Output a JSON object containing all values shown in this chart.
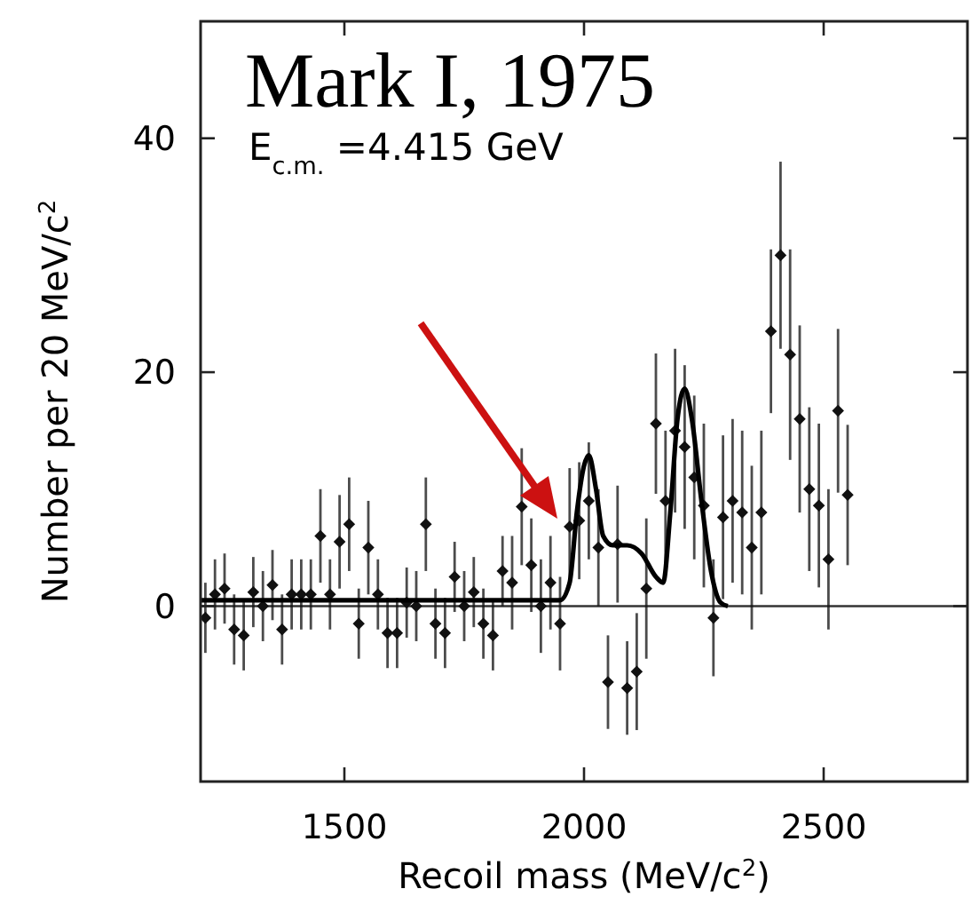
{
  "chart_data": {
    "type": "scatter",
    "title": "Mark I, 1975",
    "subtitle": "E$_{c.m.}$ =4.415 GeV",
    "xlabel": "Recoil mass (MeV/c$^{2}$)",
    "ylabel": "Number per 20 MeV/c$^{2}$",
    "xlim": [
      1200,
      2800
    ],
    "ylim": [
      -15,
      50
    ],
    "xticks": [
      1500,
      2000,
      2500
    ],
    "yticks": [
      0,
      20,
      40
    ],
    "grid": false,
    "ref_lines": [
      {
        "axis": "y",
        "value": 0
      }
    ],
    "series": [
      {
        "marker": "diamond",
        "color": "#111111",
        "x": [
          1210,
          1230,
          1250,
          1270,
          1290,
          1310,
          1330,
          1350,
          1370,
          1390,
          1410,
          1430,
          1450,
          1470,
          1490,
          1510,
          1530,
          1550,
          1570,
          1590,
          1610,
          1630,
          1650,
          1670,
          1690,
          1710,
          1730,
          1750,
          1770,
          1790,
          1810,
          1830,
          1850,
          1870,
          1890,
          1910,
          1930,
          1950,
          1970,
          1990,
          2010,
          2030,
          2050,
          2070,
          2090,
          2110,
          2130,
          2150,
          2170,
          2190,
          2210,
          2230,
          2250,
          2270,
          2290,
          2310,
          2330,
          2350,
          2370,
          2390,
          2410,
          2430,
          2450,
          2470,
          2490,
          2510,
          2530,
          2550
        ],
        "values": [
          -1,
          1,
          1.5,
          -2,
          -2.5,
          1.2,
          0,
          1.8,
          -2,
          1,
          1,
          1,
          6,
          1,
          5.5,
          7,
          -1.5,
          5,
          1,
          -2.3,
          -2.3,
          0.3,
          0,
          7,
          -1.5,
          -2.3,
          2.5,
          0,
          1.2,
          -1.5,
          -2.5,
          3,
          2,
          8.5,
          3.5,
          0,
          2,
          -1.5,
          6.8,
          7.3,
          9,
          5,
          -6.5,
          5.3,
          -7,
          -5.6,
          1.5,
          15.6,
          9,
          15,
          13.6,
          11,
          8.6,
          -1,
          7.6,
          9,
          8,
          5,
          8,
          23.5,
          30,
          21.5,
          16,
          10,
          8.6,
          4,
          16.7,
          9.5
        ],
        "errors": [
          3,
          3,
          3,
          3,
          3,
          3,
          3,
          3,
          3,
          3,
          3,
          3,
          4,
          3,
          4,
          4,
          3,
          4,
          3,
          3,
          3,
          3,
          3,
          4,
          3,
          3,
          3,
          3,
          3,
          3,
          3,
          3,
          4,
          5,
          4,
          4,
          4,
          4,
          5,
          5,
          5,
          5,
          4,
          5,
          4,
          5,
          6,
          6,
          6,
          7,
          7,
          7,
          7,
          5,
          7,
          7,
          7,
          7,
          7,
          7,
          8,
          9,
          8,
          7,
          7,
          6,
          7,
          6
        ]
      },
      {
        "type": "line",
        "color": "#000000",
        "x": [
          1200,
          1950,
          1970,
          1985,
          2000,
          2010,
          2025,
          2040,
          2060,
          2090,
          2120,
          2150,
          2165,
          2180,
          2195,
          2210,
          2225,
          2245,
          2265,
          2285,
          2300
        ],
        "values": [
          0.5,
          0.5,
          2,
          8,
          12,
          12.9,
          10,
          6,
          5.2,
          5.2,
          4.5,
          2.5,
          2,
          8,
          16,
          18.6,
          16,
          9,
          3,
          0.3,
          0
        ]
      }
    ]
  }
}
